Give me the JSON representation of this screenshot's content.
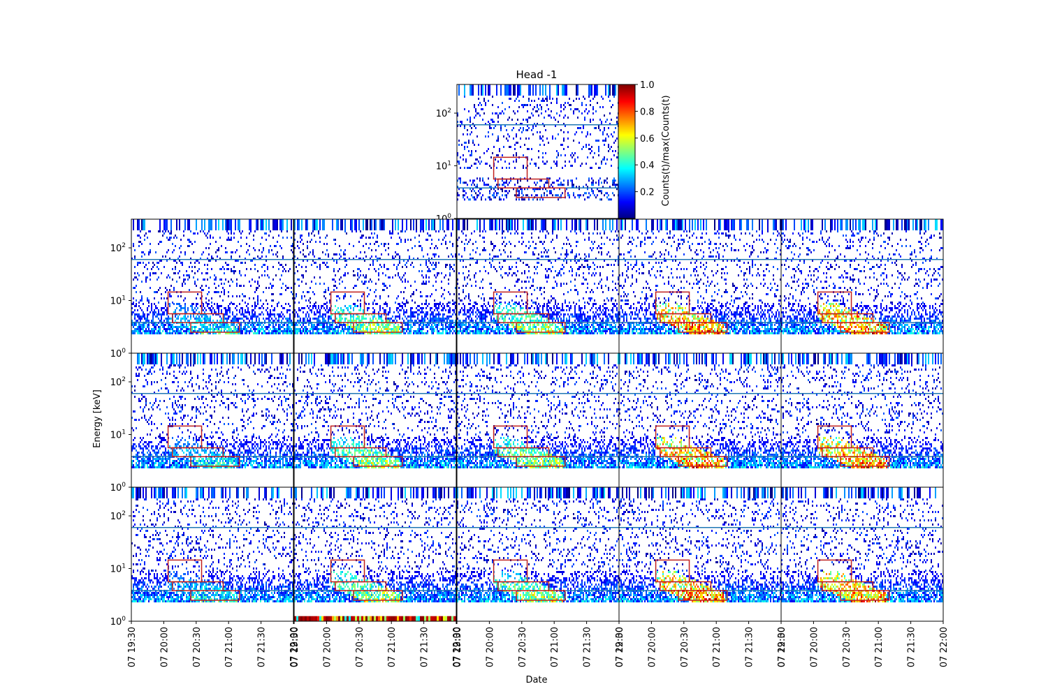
{
  "chart_data": {
    "type": "heatmap",
    "title": "Head -1",
    "xlabel": "Date",
    "ylabel": "Energy [keV]",
    "colorbar": {
      "label": "Counts(t)/max(Counts(t)",
      "range": [
        0,
        1
      ],
      "ticks": [
        "0.2",
        "0.4",
        "0.6",
        "0.8",
        "1.0"
      ],
      "colormap": "jet"
    },
    "y_scale": "log",
    "y_range": [
      1,
      350
    ],
    "y_ticks": [
      {
        "value": 1,
        "base": "10",
        "exp": "0"
      },
      {
        "value": 10,
        "base": "10",
        "exp": "1"
      },
      {
        "value": 100,
        "base": "10",
        "exp": "2"
      }
    ],
    "x_range": [
      "07 19:30",
      "07 22:00"
    ],
    "x_ticks": [
      "07 19:30",
      "07 20:00",
      "07 20:30",
      "07 21:00",
      "07 21:30",
      "07 22:00"
    ],
    "reference_lines_keV": [
      3.8,
      60
    ],
    "boxes": [
      {
        "t0": "07 20:04",
        "t1": "07 20:35",
        "e0": 5.6,
        "e1": 14.5
      },
      {
        "t0": "07 20:08",
        "t1": "07 20:55",
        "e0": 3.8,
        "e1": 5.6
      },
      {
        "t0": "07 20:25",
        "t1": "07 21:10",
        "e0": 2.5,
        "e1": 3.8
      }
    ],
    "panels": [
      {
        "row": 0,
        "col": 2,
        "band": "noise"
      },
      {
        "row": 1,
        "col": 0,
        "band": "weak"
      },
      {
        "row": 1,
        "col": 1,
        "band": "moderate"
      },
      {
        "row": 1,
        "col": 2,
        "band": "moderate"
      },
      {
        "row": 1,
        "col": 3,
        "band": "strong"
      },
      {
        "row": 1,
        "col": 4,
        "band": "strong"
      },
      {
        "row": 2,
        "col": 0,
        "band": "weak"
      },
      {
        "row": 2,
        "col": 1,
        "band": "moderate"
      },
      {
        "row": 2,
        "col": 2,
        "band": "moderate"
      },
      {
        "row": 2,
        "col": 3,
        "band": "strong"
      },
      {
        "row": 2,
        "col": 4,
        "band": "strong"
      },
      {
        "row": 3,
        "col": 0,
        "band": "weak"
      },
      {
        "row": 3,
        "col": 1,
        "band": "moderate",
        "bottom_bar": true
      },
      {
        "row": 3,
        "col": 2,
        "band": "moderate"
      },
      {
        "row": 3,
        "col": 3,
        "band": "strong"
      },
      {
        "row": 3,
        "col": 4,
        "band": "strong"
      }
    ]
  },
  "colors": {
    "box": "#c0201e",
    "reference_line": "#1f77b4"
  }
}
